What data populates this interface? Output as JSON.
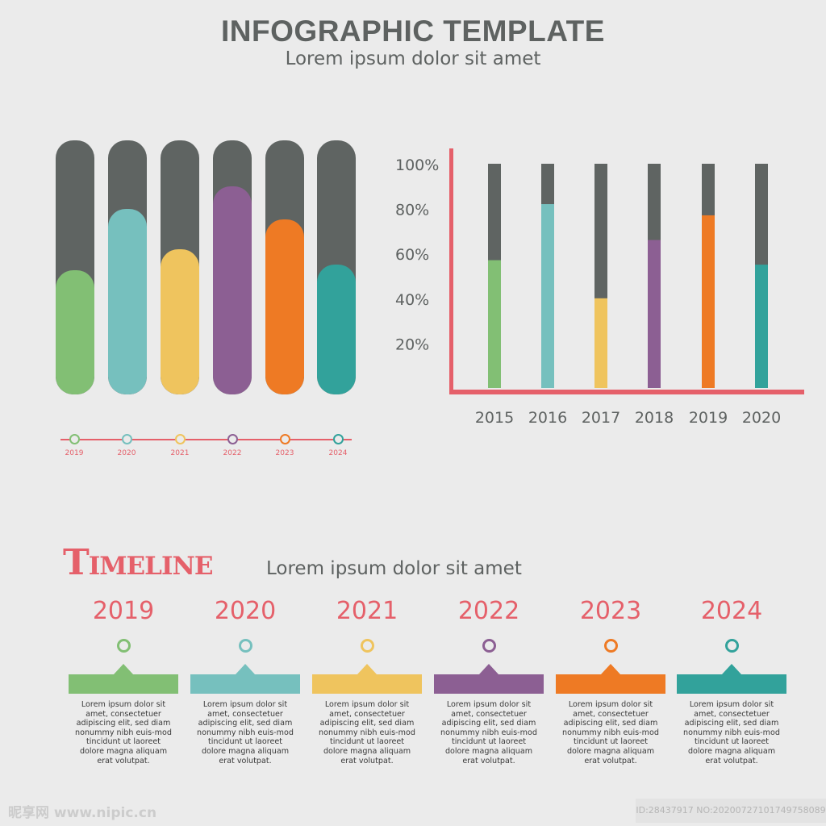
{
  "header": {
    "title": "INFOGRAPHIC TEMPLATE",
    "subtitle": "Lorem ipsum dolor sit amet"
  },
  "colors": {
    "background": "#ebebeb",
    "track": "#5f6462",
    "accent": "#e5606a",
    "palette": [
      "#82bf74",
      "#76c0be",
      "#efc45e",
      "#8c5f93",
      "#ee7a24",
      "#32a29b"
    ]
  },
  "chart_data": [
    {
      "type": "bar",
      "style": "rounded-pill-progress",
      "categories": [
        "2019",
        "2020",
        "2021",
        "2022",
        "2023",
        "2024"
      ],
      "values": [
        49,
        73,
        57,
        82,
        69,
        51
      ],
      "ylim": [
        0,
        100
      ],
      "grid": false
    },
    {
      "type": "bar",
      "style": "progress-columns",
      "categories": [
        "2015",
        "2016",
        "2017",
        "2018",
        "2019",
        "2020"
      ],
      "values": [
        57,
        82,
        40,
        66,
        77,
        55
      ],
      "yticks": [
        "20%",
        "40%",
        "60%",
        "80%",
        "100%"
      ],
      "ylim": [
        0,
        100
      ],
      "grid": false
    }
  ],
  "timeline": {
    "heading": "Timeline",
    "subtitle": "Lorem ipsum dolor sit amet",
    "items": [
      {
        "year": "2019",
        "text": "Lorem ipsum dolor sit amet, consectetuer adipiscing elit, sed diam nonummy nibh euis-mod tincidunt ut laoreet dolore magna aliquam erat volutpat."
      },
      {
        "year": "2020",
        "text": "Lorem ipsum dolor sit amet, consectetuer adipiscing elit, sed diam nonummy nibh euis-mod tincidunt ut laoreet dolore magna aliquam erat volutpat."
      },
      {
        "year": "2021",
        "text": "Lorem ipsum dolor sit amet, consectetuer adipiscing elit, sed diam nonummy nibh euis-mod tincidunt ut laoreet dolore magna aliquam erat volutpat."
      },
      {
        "year": "2022",
        "text": "Lorem ipsum dolor sit amet, consectetuer adipiscing elit, sed diam nonummy nibh euis-mod tincidunt ut laoreet dolore magna aliquam erat volutpat."
      },
      {
        "year": "2023",
        "text": "Lorem ipsum dolor sit amet, consectetuer adipiscing elit, sed diam nonummy nibh euis-mod tincidunt ut laoreet dolore magna aliquam erat volutpat."
      },
      {
        "year": "2024",
        "text": "Lorem ipsum dolor sit amet, consectetuer adipiscing elit, sed diam nonummy nibh euis-mod tincidunt ut laoreet dolore magna aliquam erat volutpat."
      }
    ]
  },
  "watermark": {
    "left": "昵享网 www.nipic.cn",
    "right": "ID:28437917 NO:20200727101749758089"
  }
}
